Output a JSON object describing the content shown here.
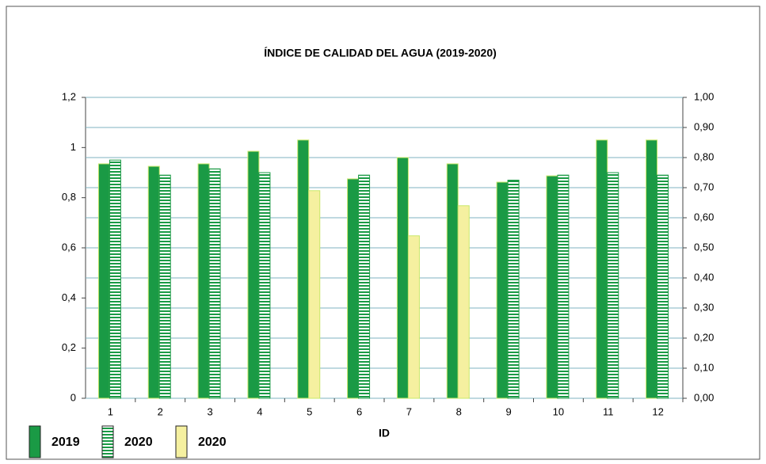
{
  "chart_data": {
    "type": "bar",
    "title": "ÍNDICE DE CALIDAD DEL AGUA (2019-2020)",
    "x_label": "ID",
    "categories": [
      "1",
      "2",
      "3",
      "4",
      "5",
      "6",
      "7",
      "8",
      "9",
      "10",
      "11",
      "12"
    ],
    "series": [
      {
        "name": "2019",
        "color": "#1a9a45",
        "style": "solid",
        "values": [
          0.935,
          0.925,
          0.935,
          0.985,
          1.03,
          0.875,
          0.96,
          0.935,
          0.862,
          0.887,
          1.03,
          1.03
        ]
      },
      {
        "name": "2020",
        "color": "#1a9a45",
        "style": "striped",
        "values": [
          0.95,
          0.89,
          0.915,
          0.9,
          null,
          0.89,
          null,
          null,
          0.87,
          0.89,
          0.9,
          0.89
        ]
      },
      {
        "name": "2020",
        "color": "#f5f0a0",
        "style": "solid",
        "axis": "y2",
        "values": [
          null,
          null,
          null,
          null,
          0.69,
          null,
          0.54,
          0.64,
          null,
          null,
          null,
          null
        ]
      }
    ],
    "ylim": [
      0,
      1.2
    ],
    "yticks": [
      0,
      {
        "value": 0.2,
        "label": "0,2"
      },
      {
        "value": 0.4,
        "label": "0,4"
      },
      {
        "value": 0.6,
        "label": "0,6"
      },
      {
        "value": 0.8,
        "label": "0,8"
      },
      1,
      {
        "value": 1.2,
        "label": "1,2"
      }
    ],
    "y2lim": [
      0,
      1
    ],
    "y2ticks": [
      {
        "value": 0,
        "label": "0,00"
      },
      {
        "value": 0.1,
        "label": "0,10"
      },
      {
        "value": 0.2,
        "label": "0,20"
      },
      {
        "value": 0.3,
        "label": "0,30"
      },
      {
        "value": 0.4,
        "label": "0,40"
      },
      {
        "value": 0.5,
        "label": "0,50"
      },
      {
        "value": 0.6,
        "label": "0,60"
      },
      {
        "value": 0.7,
        "label": "0,70"
      },
      {
        "value": 0.8,
        "label": "0,80"
      },
      {
        "value": 0.9,
        "label": "0,90"
      },
      {
        "value": 1,
        "label": "1,00"
      }
    ],
    "grid": true,
    "legend": "bottom-left"
  }
}
